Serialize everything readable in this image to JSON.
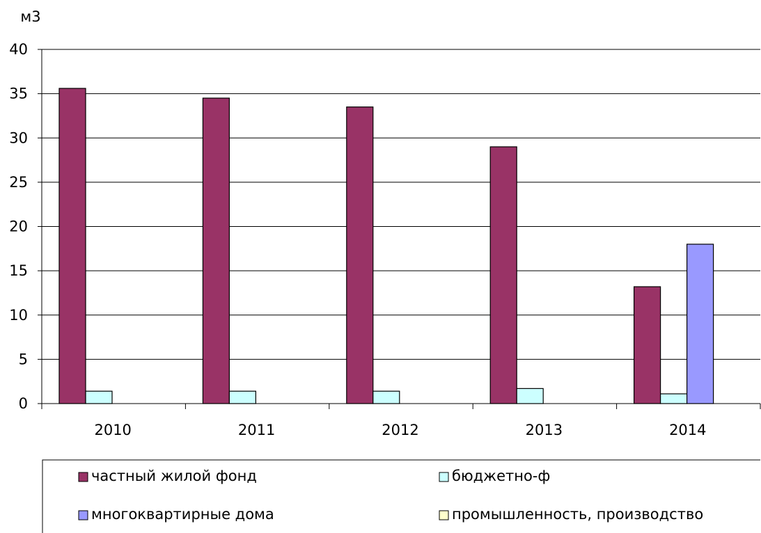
{
  "chart_data": {
    "type": "bar",
    "unit_label": "м3",
    "categories": [
      "2010",
      "2011",
      "2012",
      "2013",
      "2014"
    ],
    "series": [
      {
        "name": "частный жилой фонд",
        "color": "#993366",
        "values": [
          35.6,
          34.5,
          33.5,
          29.0,
          13.2
        ]
      },
      {
        "name": "бюджетно-ф",
        "color": "#ccffff",
        "values": [
          1.4,
          1.4,
          1.4,
          1.7,
          1.1
        ]
      },
      {
        "name": "многоквартирные дома",
        "color": "#9999ff",
        "values": [
          0,
          0,
          0,
          0,
          18.0
        ]
      },
      {
        "name": "промышленность, производство",
        "color": "#ffffcc",
        "values": [
          0,
          0,
          0,
          0,
          0
        ]
      }
    ],
    "y_ticks": [
      "0",
      "5",
      "10",
      "15",
      "20",
      "25",
      "30",
      "35",
      "40"
    ],
    "ylim": [
      0,
      40
    ],
    "grid": true,
    "legend_position": "bottom"
  }
}
